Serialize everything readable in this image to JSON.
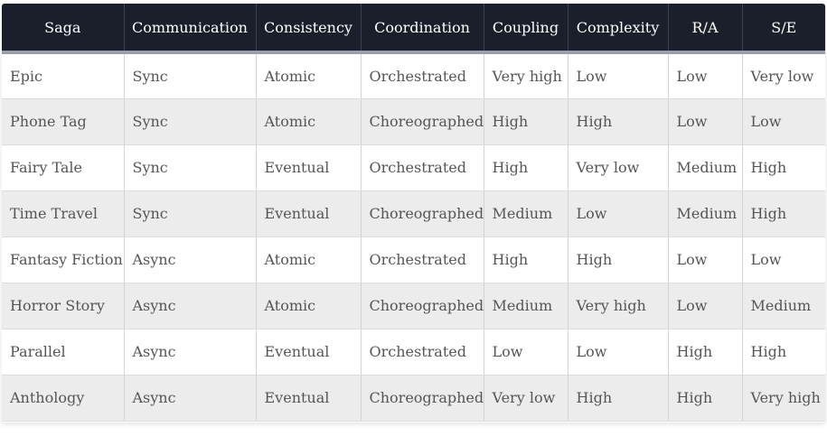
{
  "table": {
    "headers": [
      "Saga",
      "Communication",
      "Consistency",
      "Coordination",
      "Coupling",
      "Complexity",
      "R/A",
      "S/E"
    ],
    "rows": [
      [
        "Epic",
        "Sync",
        "Atomic",
        "Orchestrated",
        "Very high",
        "Low",
        "Low",
        "Very low"
      ],
      [
        "Phone Tag",
        "Sync",
        "Atomic",
        "Choreographed",
        "High",
        "High",
        "Low",
        "Low"
      ],
      [
        "Fairy Tale",
        "Sync",
        "Eventual",
        "Orchestrated",
        "High",
        "Very low",
        "Medium",
        "High"
      ],
      [
        "Time Travel",
        "Sync",
        "Eventual",
        "Choreographed",
        "Medium",
        "Low",
        "Medium",
        "High"
      ],
      [
        "Fantasy Fiction",
        "Async",
        "Atomic",
        "Orchestrated",
        "High",
        "High",
        "Low",
        "Low"
      ],
      [
        "Horror Story",
        "Async",
        "Atomic",
        "Choreographed",
        "Medium",
        "Very high",
        "Low",
        "Medium"
      ],
      [
        "Parallel",
        "Async",
        "Eventual",
        "Orchestrated",
        "Low",
        "Low",
        "High",
        "High"
      ],
      [
        "Anthology",
        "Async",
        "Eventual",
        "Choreographed",
        "Very low",
        "High",
        "High",
        "Very high"
      ]
    ]
  },
  "colors": {
    "header_bg": "#1a1f2b",
    "header_text": "#ffffff",
    "row_alt_bg": "#ececec",
    "cell_text": "#555555"
  }
}
